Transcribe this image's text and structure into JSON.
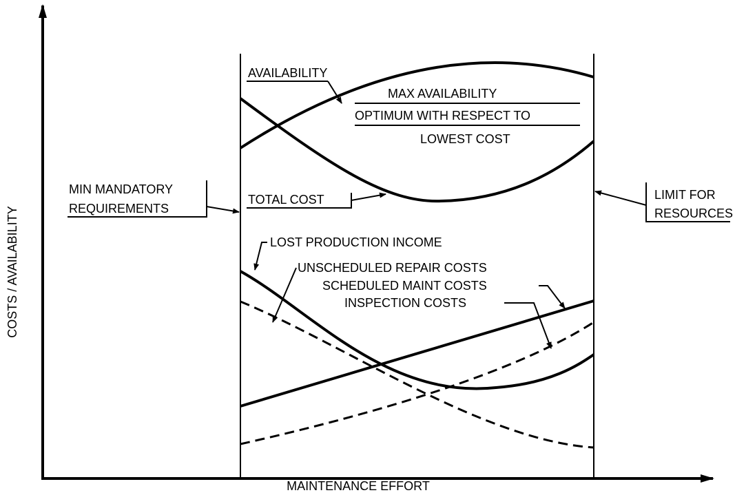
{
  "axes": {
    "y_label": "COSTS / AVAILABILITY",
    "x_label": "MAINTENANCE EFFORT"
  },
  "labels": {
    "availability": "AVAILABILITY",
    "max_availability": "MAX AVAILABILITY",
    "optimum": "OPTIMUM WITH RESPECT TO",
    "lowest_cost": "LOWEST COST",
    "total_cost": "TOTAL COST",
    "min_mandatory": [
      "MIN MANDATORY",
      "REQUIREMENTS"
    ],
    "limit": [
      "LIMIT FOR",
      "RESOURCES"
    ],
    "lost_production": "LOST PRODUCTION INCOME",
    "unscheduled": "UNSCHEDULED REPAIR COSTS",
    "scheduled": "SCHEDULED MAINT COSTS",
    "inspection": "INSPECTION COSTS"
  }
}
